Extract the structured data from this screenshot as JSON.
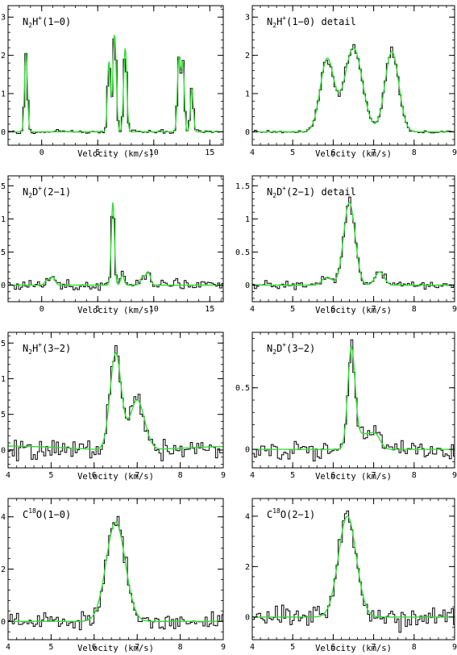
{
  "colors": {
    "observed": "#000000",
    "fit": "#33dd33",
    "axes": "#000000"
  },
  "chart_data": [
    {
      "type": "line",
      "title": "N₂H⁺(1−0)",
      "title_parts": {
        "base": "N",
        "sub": "2",
        "mid": "H",
        "sup": "+",
        "rest": "(1−0)"
      },
      "xlabel": "Velocity (km/s)",
      "ylabel": "",
      "xlim": [
        -3,
        16.2
      ],
      "ylim": [
        -0.35,
        3.3
      ],
      "x_major_ticks": [
        0,
        5,
        10,
        15
      ],
      "y_major_ticks": [
        0,
        1,
        2,
        3
      ],
      "x_tick_labels": [
        "0",
        "5",
        "10",
        "15"
      ],
      "y_tick_labels": [
        "0",
        "1",
        "2",
        "3"
      ],
      "baseline_noise": 0.04,
      "series": [
        {
          "components": [
            {
              "center": -1.4,
              "amp": 2.05,
              "width": 0.13
            },
            {
              "center": 6.0,
              "amp": 1.85,
              "width": 0.13
            },
            {
              "center": 6.5,
              "amp": 2.55,
              "width": 0.15
            },
            {
              "center": 7.45,
              "amp": 2.2,
              "width": 0.14
            },
            {
              "center": 12.25,
              "amp": 1.95,
              "width": 0.14
            },
            {
              "center": 12.6,
              "amp": 1.75,
              "width": 0.13
            },
            {
              "center": 13.4,
              "amp": 1.15,
              "width": 0.13
            }
          ]
        }
      ]
    },
    {
      "type": "line",
      "title": "N₂H⁺(1−0) detail",
      "title_parts": {
        "base": "N",
        "sub": "2",
        "mid": "H",
        "sup": "+",
        "rest": "(1−0) detail"
      },
      "xlabel": "Velocity (km/s)",
      "ylabel": "",
      "xlim": [
        4,
        9
      ],
      "ylim": [
        -0.35,
        3.3
      ],
      "x_major_ticks": [
        4,
        5,
        6,
        7,
        8,
        9
      ],
      "y_major_ticks": [
        0,
        1,
        2,
        3
      ],
      "x_tick_labels": [
        "4",
        "5",
        "6",
        "7",
        "8",
        "9"
      ],
      "y_tick_labels": [
        "0",
        "1",
        "2",
        "3"
      ],
      "baseline_noise": 0.04,
      "series": [
        {
          "components": [
            {
              "center": 5.85,
              "amp": 1.9,
              "width": 0.17
            },
            {
              "center": 6.5,
              "amp": 2.2,
              "width": 0.22
            },
            {
              "center": 7.45,
              "amp": 2.1,
              "width": 0.17
            }
          ]
        }
      ]
    },
    {
      "type": "line",
      "title": "N₂D⁺(2−1)",
      "title_parts": {
        "base": "N",
        "sub": "2",
        "mid": "D",
        "sup": "+",
        "rest": "(2−1)"
      },
      "xlabel": "Velocity (km/s)",
      "ylabel": "",
      "xlim": [
        -3,
        16.2
      ],
      "ylim": [
        -0.25,
        1.65
      ],
      "x_major_ticks": [
        0,
        5,
        10,
        15
      ],
      "y_major_ticks": [
        0,
        0.5,
        1,
        1.5
      ],
      "x_tick_labels": [
        "0",
        "5",
        "10",
        "15"
      ],
      "y_tick_labels": [
        "0",
        "0.5",
        "1",
        "1.5"
      ],
      "baseline_noise": 0.07,
      "series": [
        {
          "components": [
            {
              "center": 0.5,
              "amp": 0.08,
              "width": 0.2
            },
            {
              "center": 1.0,
              "amp": 0.12,
              "width": 0.2
            },
            {
              "center": 6.35,
              "amp": 1.25,
              "width": 0.14
            },
            {
              "center": 7.2,
              "amp": 0.15,
              "width": 0.15
            },
            {
              "center": 9.0,
              "amp": 0.12,
              "width": 0.2
            },
            {
              "center": 9.5,
              "amp": 0.2,
              "width": 0.2
            }
          ]
        }
      ]
    },
    {
      "type": "line",
      "title": "N₂D⁺(2−1) detail",
      "title_parts": {
        "base": "N",
        "sub": "2",
        "mid": "D",
        "sup": "+",
        "rest": "(2−1) detail"
      },
      "xlabel": "Velocity (km/s)",
      "ylabel": "",
      "xlim": [
        4,
        9
      ],
      "ylim": [
        -0.25,
        1.65
      ],
      "x_major_ticks": [
        4,
        5,
        6,
        7,
        8,
        9
      ],
      "y_major_ticks": [
        0,
        0.5,
        1,
        1.5
      ],
      "x_tick_labels": [
        "4",
        "5",
        "6",
        "7",
        "8",
        "9"
      ],
      "y_tick_labels": [
        "0",
        "0.5",
        "1",
        "1.5"
      ],
      "baseline_noise": 0.06,
      "series": [
        {
          "components": [
            {
              "center": 5.85,
              "amp": 0.12,
              "width": 0.12
            },
            {
              "center": 6.4,
              "amp": 1.25,
              "width": 0.14
            },
            {
              "center": 7.15,
              "amp": 0.2,
              "width": 0.11
            }
          ]
        }
      ]
    },
    {
      "type": "line",
      "title": "N₂H⁺(3−2)",
      "title_parts": {
        "base": "N",
        "sub": "2",
        "mid": "H",
        "sup": "+",
        "rest": "(3−2)"
      },
      "xlabel": "Velocity (km/s)",
      "ylabel": "",
      "xlim": [
        4,
        9
      ],
      "ylim": [
        -0.25,
        1.65
      ],
      "x_major_ticks": [
        4,
        5,
        6,
        7,
        8,
        9
      ],
      "y_major_ticks": [
        0,
        0.5,
        1,
        1.5
      ],
      "x_tick_labels": [
        "4",
        "5",
        "6",
        "7",
        "8",
        "9"
      ],
      "y_tick_labels": [
        "0",
        "0.5",
        "1",
        "1.5"
      ],
      "baseline_noise": 0.13,
      "fit_baseline_bowl": 0.06,
      "series": [
        {
          "components": [
            {
              "center": 6.5,
              "amp": 1.35,
              "width": 0.13
            },
            {
              "center": 7.0,
              "amp": 0.7,
              "width": 0.17
            }
          ]
        }
      ]
    },
    {
      "type": "line",
      "title": "N₂D⁺(3−2)",
      "title_parts": {
        "base": "N",
        "sub": "2",
        "mid": "D",
        "sup": "+",
        "rest": "(3−2)"
      },
      "xlabel": "Velocity (km/s)",
      "ylabel": "",
      "xlim": [
        4,
        9
      ],
      "ylim": [
        -0.15,
        0.95
      ],
      "x_major_ticks": [
        4,
        5,
        6,
        7,
        8,
        9
      ],
      "y_major_ticks": [
        0,
        0.5
      ],
      "x_tick_labels": [
        "4",
        "5",
        "6",
        "7",
        "8",
        "9"
      ],
      "y_tick_labels": [
        "0",
        "0.5"
      ],
      "baseline_noise": 0.07,
      "series": [
        {
          "components": [
            {
              "center": 6.45,
              "amp": 0.8,
              "width": 0.09
            },
            {
              "center": 6.75,
              "amp": 0.12,
              "width": 0.18
            },
            {
              "center": 7.05,
              "amp": 0.1,
              "width": 0.12
            }
          ]
        }
      ]
    },
    {
      "type": "line",
      "title": "C¹⁸O(1−0)",
      "title_parts": {
        "base": "C",
        "sub": "",
        "mid": "",
        "sup": "18",
        "rest": "O(1−0)"
      },
      "xlabel": "Velocity (km/s)",
      "ylabel": "",
      "xlim": [
        4,
        9
      ],
      "ylim": [
        -0.7,
        4.7
      ],
      "x_major_ticks": [
        4,
        5,
        6,
        7,
        8,
        9
      ],
      "y_major_ticks": [
        0,
        2,
        4
      ],
      "x_tick_labels": [
        "4",
        "5",
        "6",
        "7",
        "8",
        "9"
      ],
      "y_tick_labels": [
        "0",
        "2",
        "4"
      ],
      "baseline_noise": 0.3,
      "series": [
        {
          "components": [
            {
              "center": 6.5,
              "amp": 3.8,
              "width": 0.22
            }
          ]
        }
      ]
    },
    {
      "type": "line",
      "title": "C¹⁸O(2−1)",
      "title_parts": {
        "base": "C",
        "sub": "",
        "mid": "",
        "sup": "18",
        "rest": "O(2−1)"
      },
      "xlabel": "Velocity (km/s)",
      "ylabel": "",
      "xlim": [
        4,
        9
      ],
      "ylim": [
        -0.9,
        4.7
      ],
      "x_major_ticks": [
        4,
        5,
        6,
        7,
        8,
        9
      ],
      "y_major_ticks": [
        0,
        2,
        4
      ],
      "x_tick_labels": [
        "4",
        "5",
        "6",
        "7",
        "8",
        "9"
      ],
      "y_tick_labels": [
        "0",
        "2",
        "4"
      ],
      "baseline_noise": 0.4,
      "series": [
        {
          "components": [
            {
              "center": 6.35,
              "amp": 4.0,
              "width": 0.22
            }
          ]
        }
      ]
    }
  ]
}
